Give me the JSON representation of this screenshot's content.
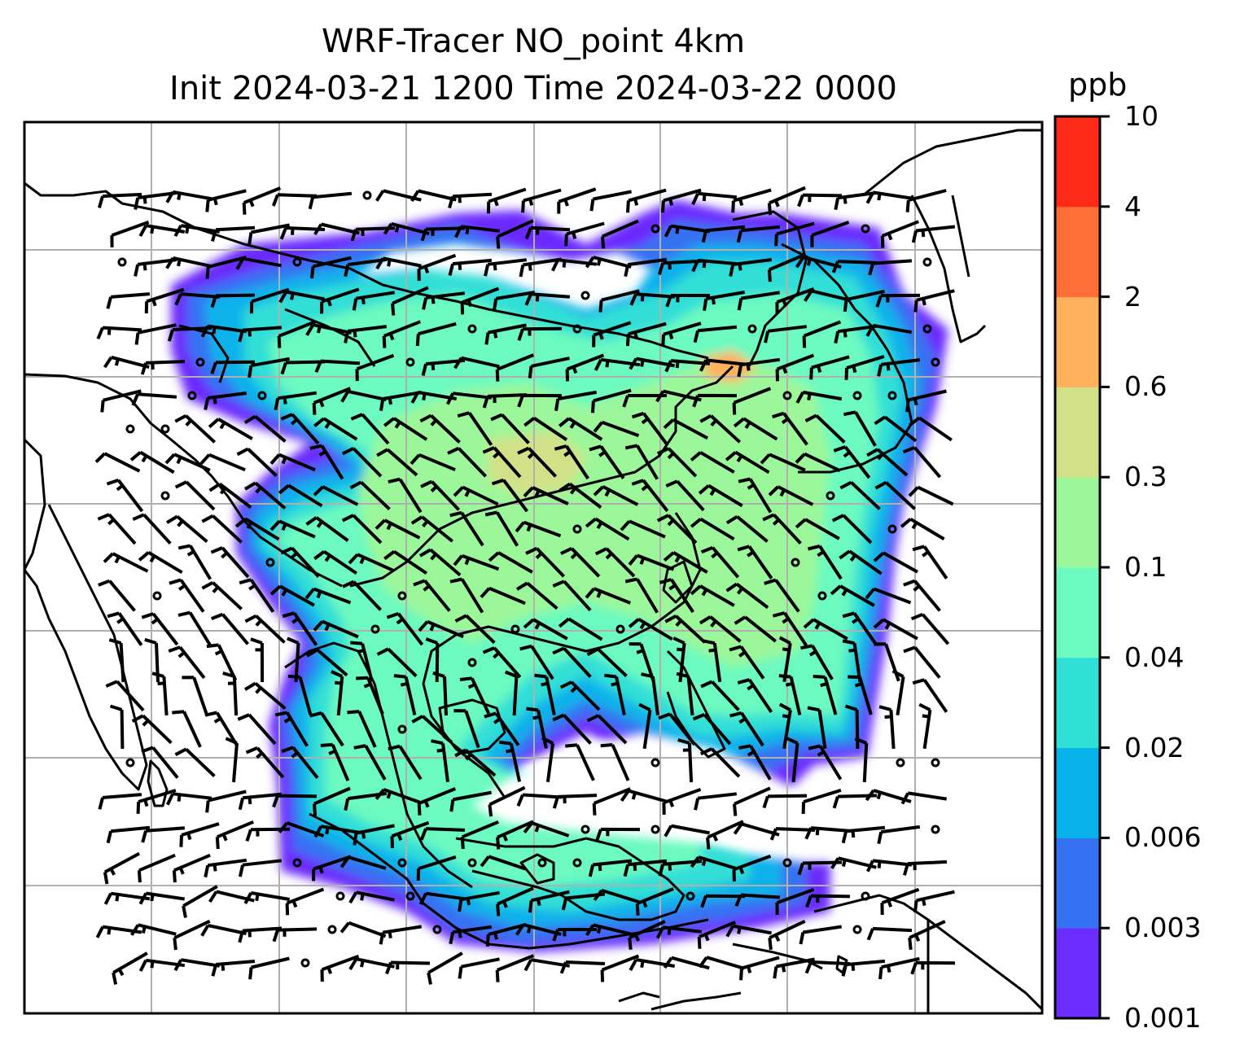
{
  "title_line1": "WRF-Tracer NO_point 4km",
  "title_line2": "Init 2024-03-21 1200 Time 2024-03-22 0000",
  "chart_data": {
    "type": "heatmap",
    "title": "WRF-Tracer NO_point 4km\nInit 2024-03-21 1200 Time 2024-03-22 0000",
    "colorbar": {
      "unit": "ppb",
      "levels": [
        "0.001",
        "0.003",
        "0.006",
        "0.02",
        "0.04",
        "0.1",
        "0.3",
        "0.6",
        "2",
        "4",
        "10"
      ],
      "colors": [
        "#6a2cff",
        "#3472f2",
        "#08b2ea",
        "#30dfd6",
        "#6cfac0",
        "#9cf79a",
        "#d2e188",
        "#ffb15c",
        "#ff6e37",
        "#ff2a17"
      ],
      "colormap": "rainbow"
    },
    "grid": true,
    "overlays": [
      "coastlines",
      "country borders",
      "wind barbs"
    ],
    "description_tags": [
      "tracer plume",
      "East/Southeast Asia"
    ]
  }
}
